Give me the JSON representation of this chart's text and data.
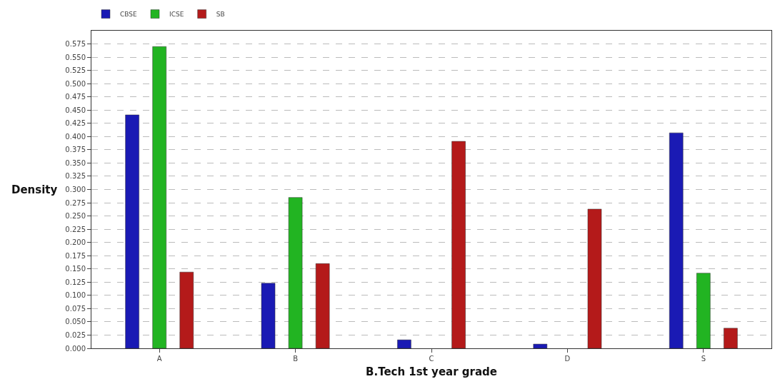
{
  "chart_data": {
    "type": "bar",
    "xlabel": "B.Tech 1st year grade",
    "ylabel": "Density",
    "categories": [
      "A",
      "B",
      "C",
      "D",
      "S"
    ],
    "series": [
      {
        "name": "CBSE",
        "color": "#1a1ab4",
        "values": [
          0.441,
          0.123,
          0.016,
          0.008,
          0.407
        ]
      },
      {
        "name": "ICSE",
        "color": "#22b422",
        "values": [
          0.57,
          0.285,
          null,
          null,
          0.142
        ]
      },
      {
        "name": "SB",
        "color": "#b41a1a",
        "values": [
          0.144,
          0.16,
          0.391,
          0.263,
          0.038
        ]
      }
    ],
    "ylim": [
      0,
      0.6
    ],
    "yticks": [
      {
        "value": 0,
        "label": "0.000"
      },
      0.025,
      {
        "value": 0.05,
        "label": "0.050"
      },
      0.075,
      {
        "value": 0.1,
        "label": "0.100"
      },
      0.125,
      {
        "value": 0.15,
        "label": "0.150"
      },
      0.175,
      {
        "value": 0.2,
        "label": "0.200"
      },
      0.225,
      {
        "value": 0.25,
        "label": "0.250"
      },
      0.275,
      {
        "value": 0.3,
        "label": "0.300"
      },
      0.325,
      {
        "value": 0.35,
        "label": "0.350"
      },
      0.375,
      {
        "value": 0.4,
        "label": "0.400"
      },
      0.425,
      {
        "value": 0.45,
        "label": "0.450"
      },
      0.475,
      {
        "value": 0.5,
        "label": "0.500"
      },
      0.525,
      {
        "value": 0.55,
        "label": "0.550"
      },
      0.575
    ],
    "grid": "y",
    "legend": "top left"
  }
}
